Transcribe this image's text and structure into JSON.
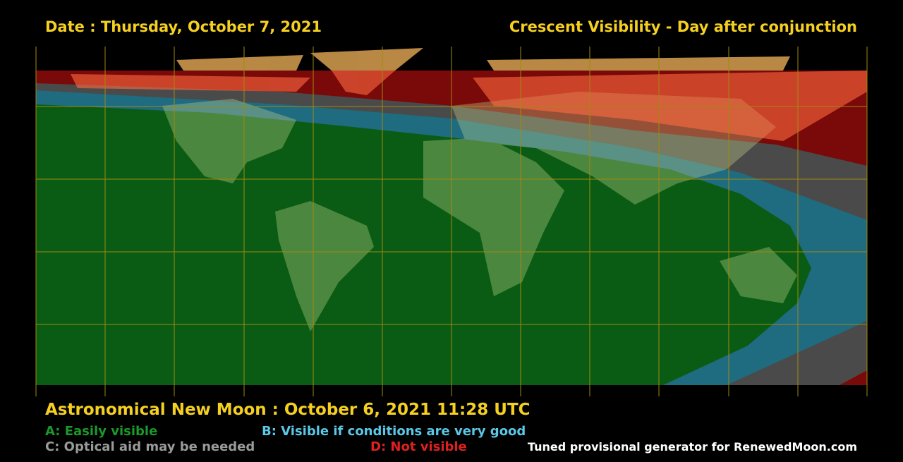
{
  "header": {
    "date": "Date : Thursday, October 7, 2021",
    "title": "Crescent Visibility - Day after conjunction"
  },
  "new_moon": "Astronomical New Moon : October 6, 2021 11:28 UTC",
  "legend": [
    {
      "label": "A: Easily visible"
    },
    {
      "label": "B: Visible if conditions are very good"
    },
    {
      "label": "C: Optical aid may be needed"
    },
    {
      "label": "D: Not visible"
    }
  ],
  "credit": "Tuned provisional generator for RenewedMoon.com"
}
